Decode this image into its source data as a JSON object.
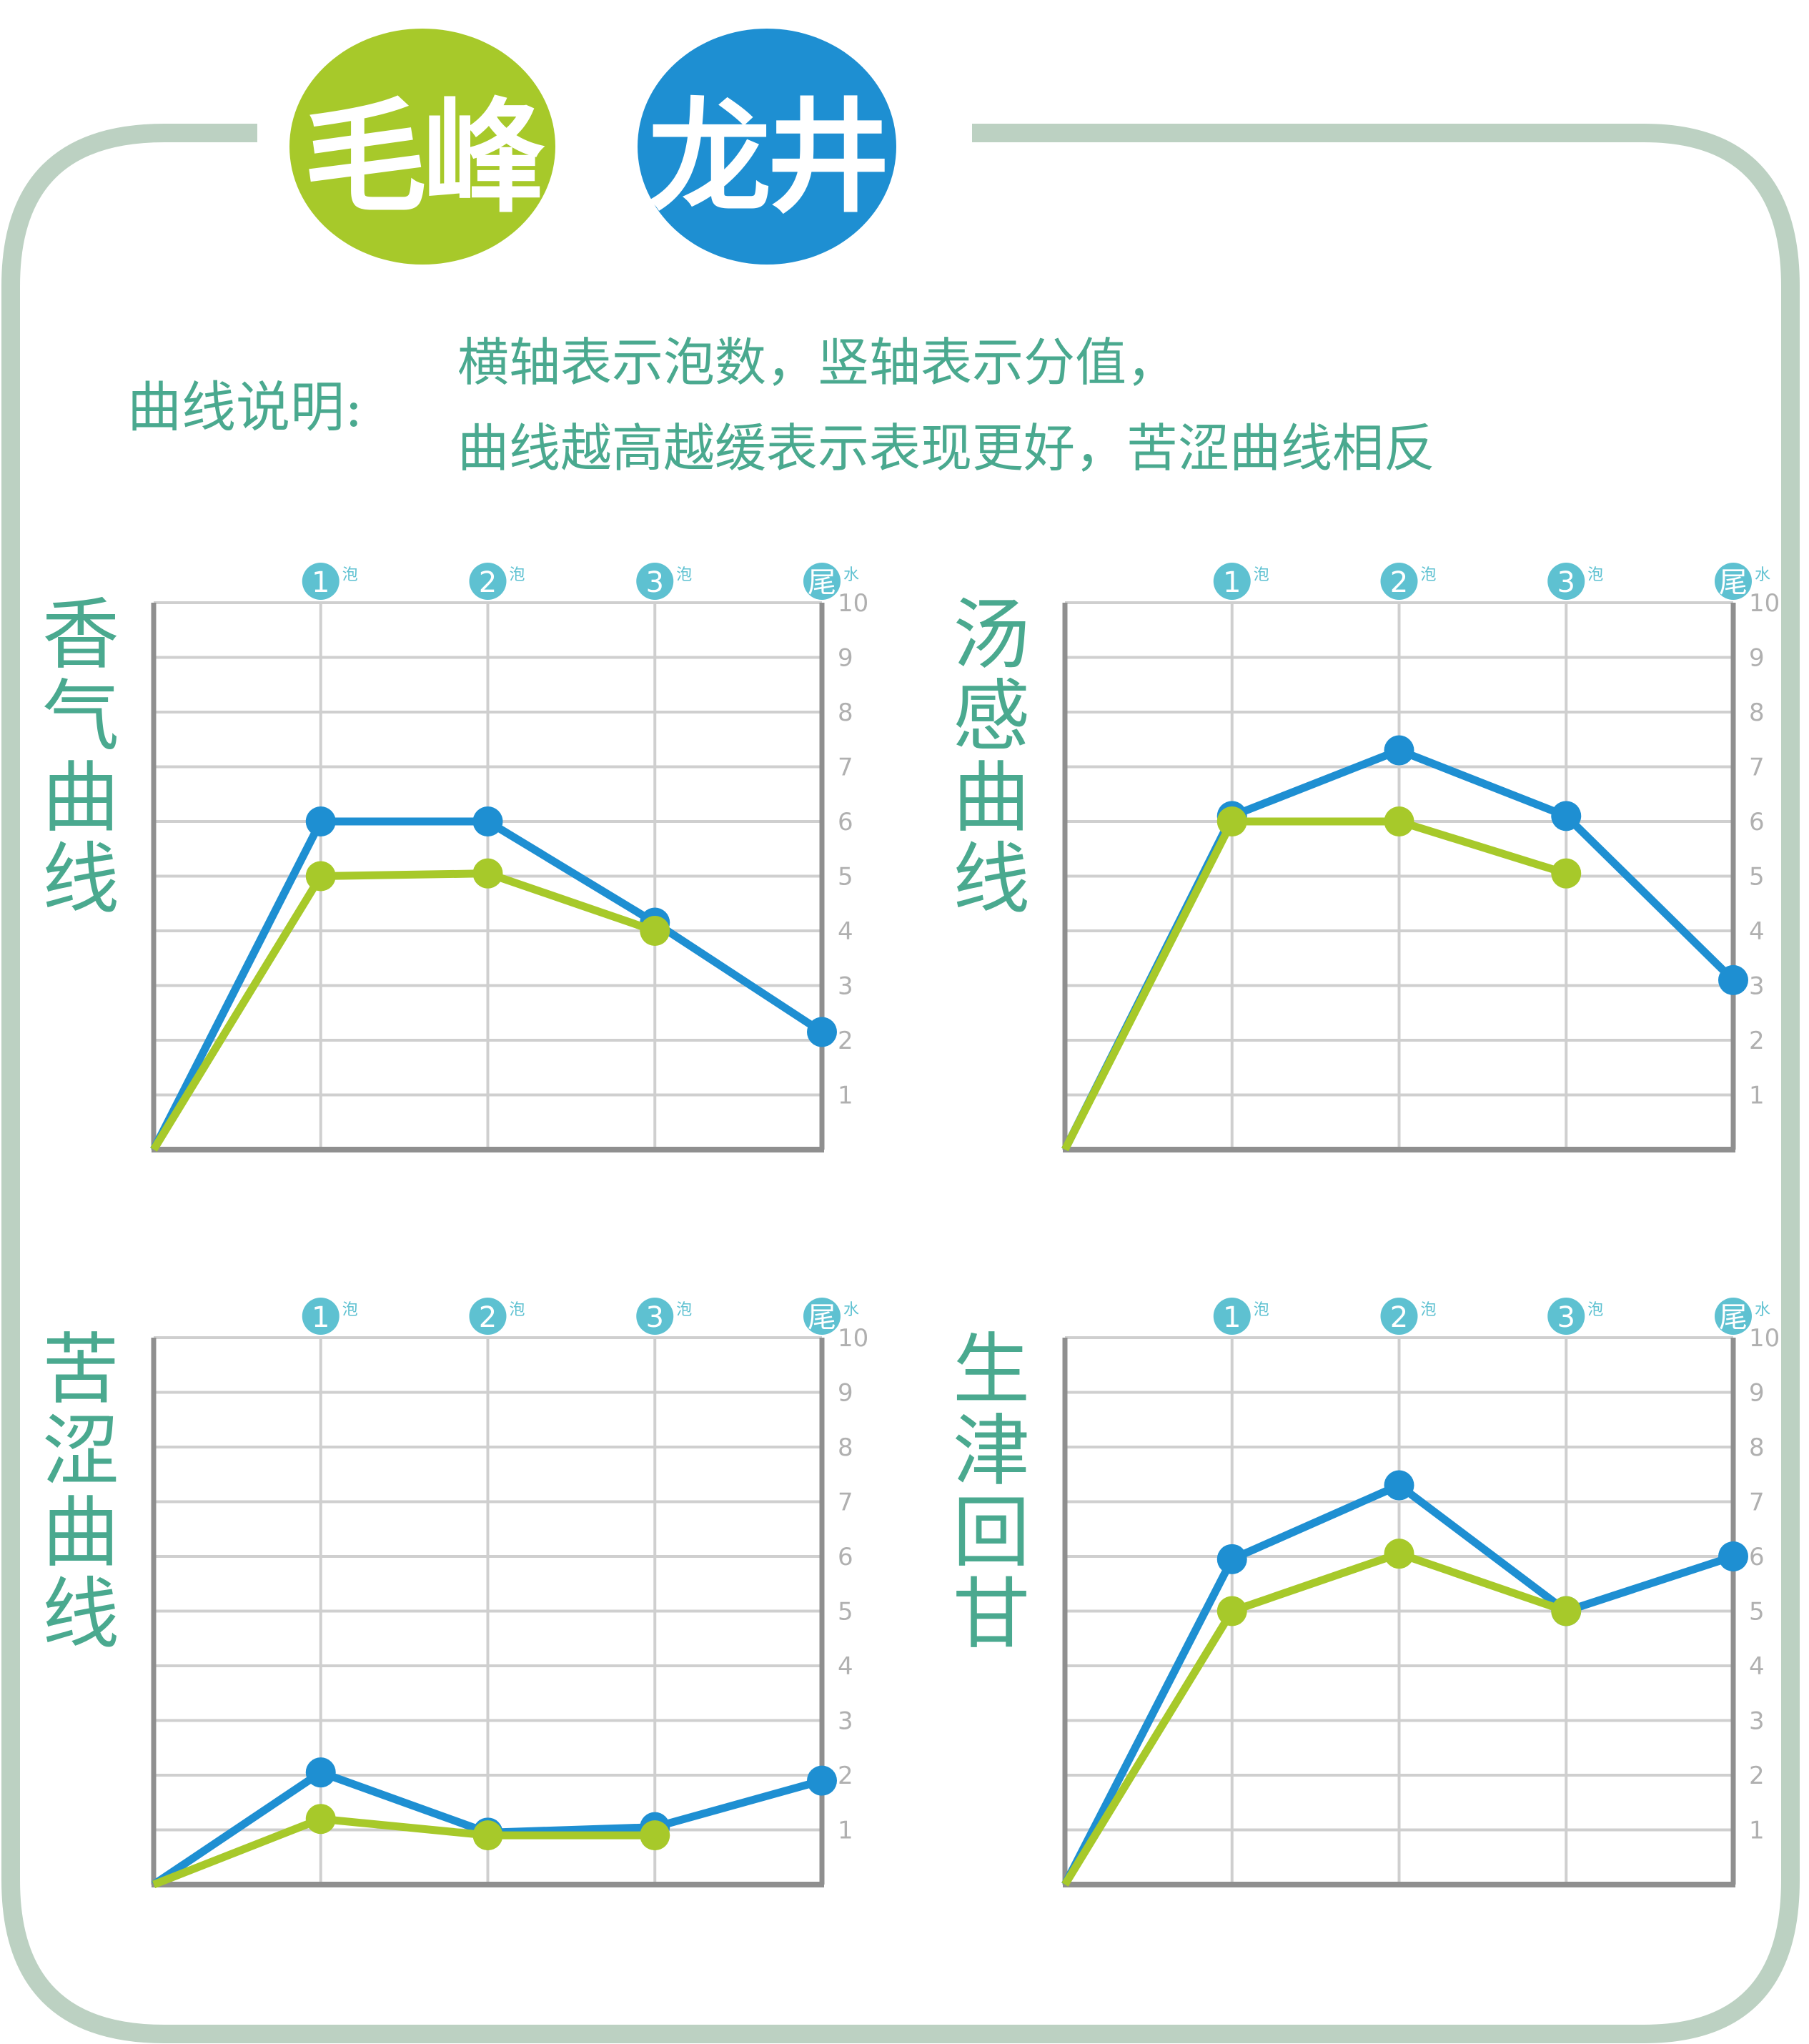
{
  "badges": {
    "left": "毛峰",
    "right": "龙井"
  },
  "legend": {
    "key": "曲线说明:",
    "line1": "横轴表示泡数，竖轴表示分值，",
    "line2": "曲线越高越缓表示表现更好，苦涩曲线相反"
  },
  "colors": {
    "maofeng": "#a7c92a",
    "longjing": "#1e8fd2",
    "frame": "#bcd1c2",
    "text": "#4aa98f",
    "marker": "#5ec1d1",
    "grid": "#cfcfcf",
    "axis": "#8f8f8f"
  },
  "axis_labels": {
    "x": [
      {
        "num": "1",
        "suffix": "泡"
      },
      {
        "num": "2",
        "suffix": "泡"
      },
      {
        "num": "3",
        "suffix": "泡"
      },
      {
        "num": "尾",
        "suffix": "水"
      }
    ],
    "y_ticks": [
      "1",
      "2",
      "3",
      "4",
      "5",
      "6",
      "7",
      "8",
      "9",
      "10"
    ]
  },
  "chart_data": [
    {
      "type": "line",
      "title": "香气曲线",
      "x": [
        0,
        1,
        2,
        3,
        4
      ],
      "ylim": [
        0,
        10
      ],
      "grid": true,
      "series": [
        {
          "name": "毛峰",
          "color": "#a7c92a",
          "values": [
            0,
            5.0,
            5.05,
            4.0,
            null
          ]
        },
        {
          "name": "龙井",
          "color": "#1e8fd2",
          "values": [
            0,
            6.0,
            6.0,
            4.15,
            2.15
          ]
        }
      ]
    },
    {
      "type": "line",
      "title": "汤感曲线",
      "x": [
        0,
        1,
        2,
        3,
        4
      ],
      "ylim": [
        0,
        10
      ],
      "grid": true,
      "series": [
        {
          "name": "毛峰",
          "color": "#a7c92a",
          "values": [
            0,
            6.0,
            6.0,
            5.05,
            null
          ]
        },
        {
          "name": "龙井",
          "color": "#1e8fd2",
          "values": [
            0,
            6.1,
            7.3,
            6.1,
            3.1
          ]
        }
      ]
    },
    {
      "type": "line",
      "title": "苦涩曲线",
      "x": [
        0,
        1,
        2,
        3,
        4
      ],
      "ylim": [
        0,
        10
      ],
      "grid": true,
      "series": [
        {
          "name": "毛峰",
          "color": "#a7c92a",
          "values": [
            0,
            1.2,
            0.9,
            0.9,
            null
          ]
        },
        {
          "name": "龙井",
          "color": "#1e8fd2",
          "values": [
            0,
            2.05,
            0.95,
            1.05,
            1.9
          ]
        }
      ]
    },
    {
      "type": "line",
      "title": "生津回甘",
      "x": [
        0,
        1,
        2,
        3,
        4
      ],
      "ylim": [
        0,
        10
      ],
      "grid": true,
      "series": [
        {
          "name": "毛峰",
          "color": "#a7c92a",
          "values": [
            0,
            5.0,
            6.05,
            5.0,
            null
          ]
        },
        {
          "name": "龙井",
          "color": "#1e8fd2",
          "values": [
            0,
            5.95,
            7.3,
            5.0,
            6.0
          ]
        }
      ]
    }
  ]
}
